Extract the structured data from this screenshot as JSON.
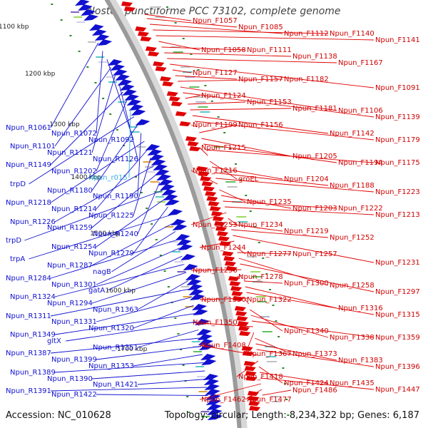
{
  "title": "Nostoc punctiforme PCC 73102, complete genome",
  "footer": {
    "accession": "Accession: NC_010628",
    "summary": "Topology: circular; Length: 8,234,322 bp; Genes: 6,187"
  },
  "colors": {
    "forward": "#e00000",
    "reverse": "#1010d0",
    "rna": "#30b0e0",
    "backbone": "#9a9a9a",
    "kbp_marker": "#2a8a2a"
  },
  "kbp_ticks": [
    "1100 kbp",
    "1200 kbp",
    "1300 kbp",
    "1400 kbp",
    "1500 kbp",
    "1600 kbp",
    "1700 kbp"
  ],
  "right_labels": [
    "Npun_F1057",
    "Npun_F1085",
    "Npun_F1112",
    "Npun_F1140",
    "Npun_F1141",
    "Npun_F1058",
    "Npun_F1111",
    "Npun_F1138",
    "Npun_F1167",
    "Npun_F1091",
    "Npun_F1127",
    "Npun_F1157",
    "Npun_F1182",
    "Npun_F1106",
    "Npun_F1139",
    "Npun_F1124",
    "Npun_F1153",
    "Npun_F1181",
    "Npun_F1142",
    "Npun_F1179",
    "Npun_F1199",
    "Npun_F1156",
    "Npun_F1205",
    "Npun_F1194",
    "Npun_F1175",
    "Npun_F1215",
    "groEL",
    "Npun_F1204",
    "Npun_F1188",
    "Npun_F1223",
    "Npun_F1216",
    "Npun_F1235",
    "Npun_F1203",
    "Npun_F1222",
    "Npun_F1213",
    "Npun_F1253",
    "Npun_F1234",
    "Npun_F1219",
    "Npun_F1252",
    "Npun_F1231",
    "Npun_F1244",
    "Npun_F1277",
    "Npun_F1257",
    "Npun_F1258",
    "Npun_F1297",
    "Npun_F1296",
    "Npun_F1278",
    "Npun_F1300",
    "Npun_F1316",
    "Npun_F1315",
    "Npun_F1330",
    "Npun_F1322",
    "Npun_F1340",
    "Npun_F1338",
    "Npun_F1359",
    "Npun_F1350",
    "Npun_F1367",
    "Npun_F1373",
    "Npun_F1383",
    "Npun_F1396",
    "Npun_F1408",
    "Npun_F1418",
    "Npun_F1424",
    "Npun_F1435",
    "Npun_F1447",
    "Npun_F1462",
    "Npun_F1477",
    "Npun_F1486"
  ],
  "left_labels": [
    "Npun_R1061",
    "Npun_R1072",
    "Npun_R1092",
    "Npun_R1101",
    "Npun_R1121",
    "Npun_R1126",
    "Npun_R1149",
    "Npun_R1202",
    "Npun_r015",
    "trpD",
    "Npun_R1180",
    "Npun_R1190",
    "Npun_R1218",
    "Npun_R1214",
    "Npun_R1225",
    "Npun_R1226",
    "Npun_R1259",
    "Npun_R1240",
    "trpD",
    "Npun_R1254",
    "Npun_R1279",
    "trpA",
    "Npun_R1287",
    "nagB",
    "Npun_R1284",
    "Npun_R1301",
    "gatA",
    "Npun_R1324",
    "Npun_R1294",
    "Npun_R1363",
    "Npun_R1311",
    "Npun_R1331",
    "Npun_R1320",
    "Npun_R1349",
    "gltX",
    "Npun_R1351",
    "Npun_R1387",
    "Npun_R1399",
    "Npun_R1353",
    "Npun_R1389",
    "Npun_R1390",
    "Npun_R1421",
    "Npun_R1391",
    "Npun_R1422"
  ]
}
